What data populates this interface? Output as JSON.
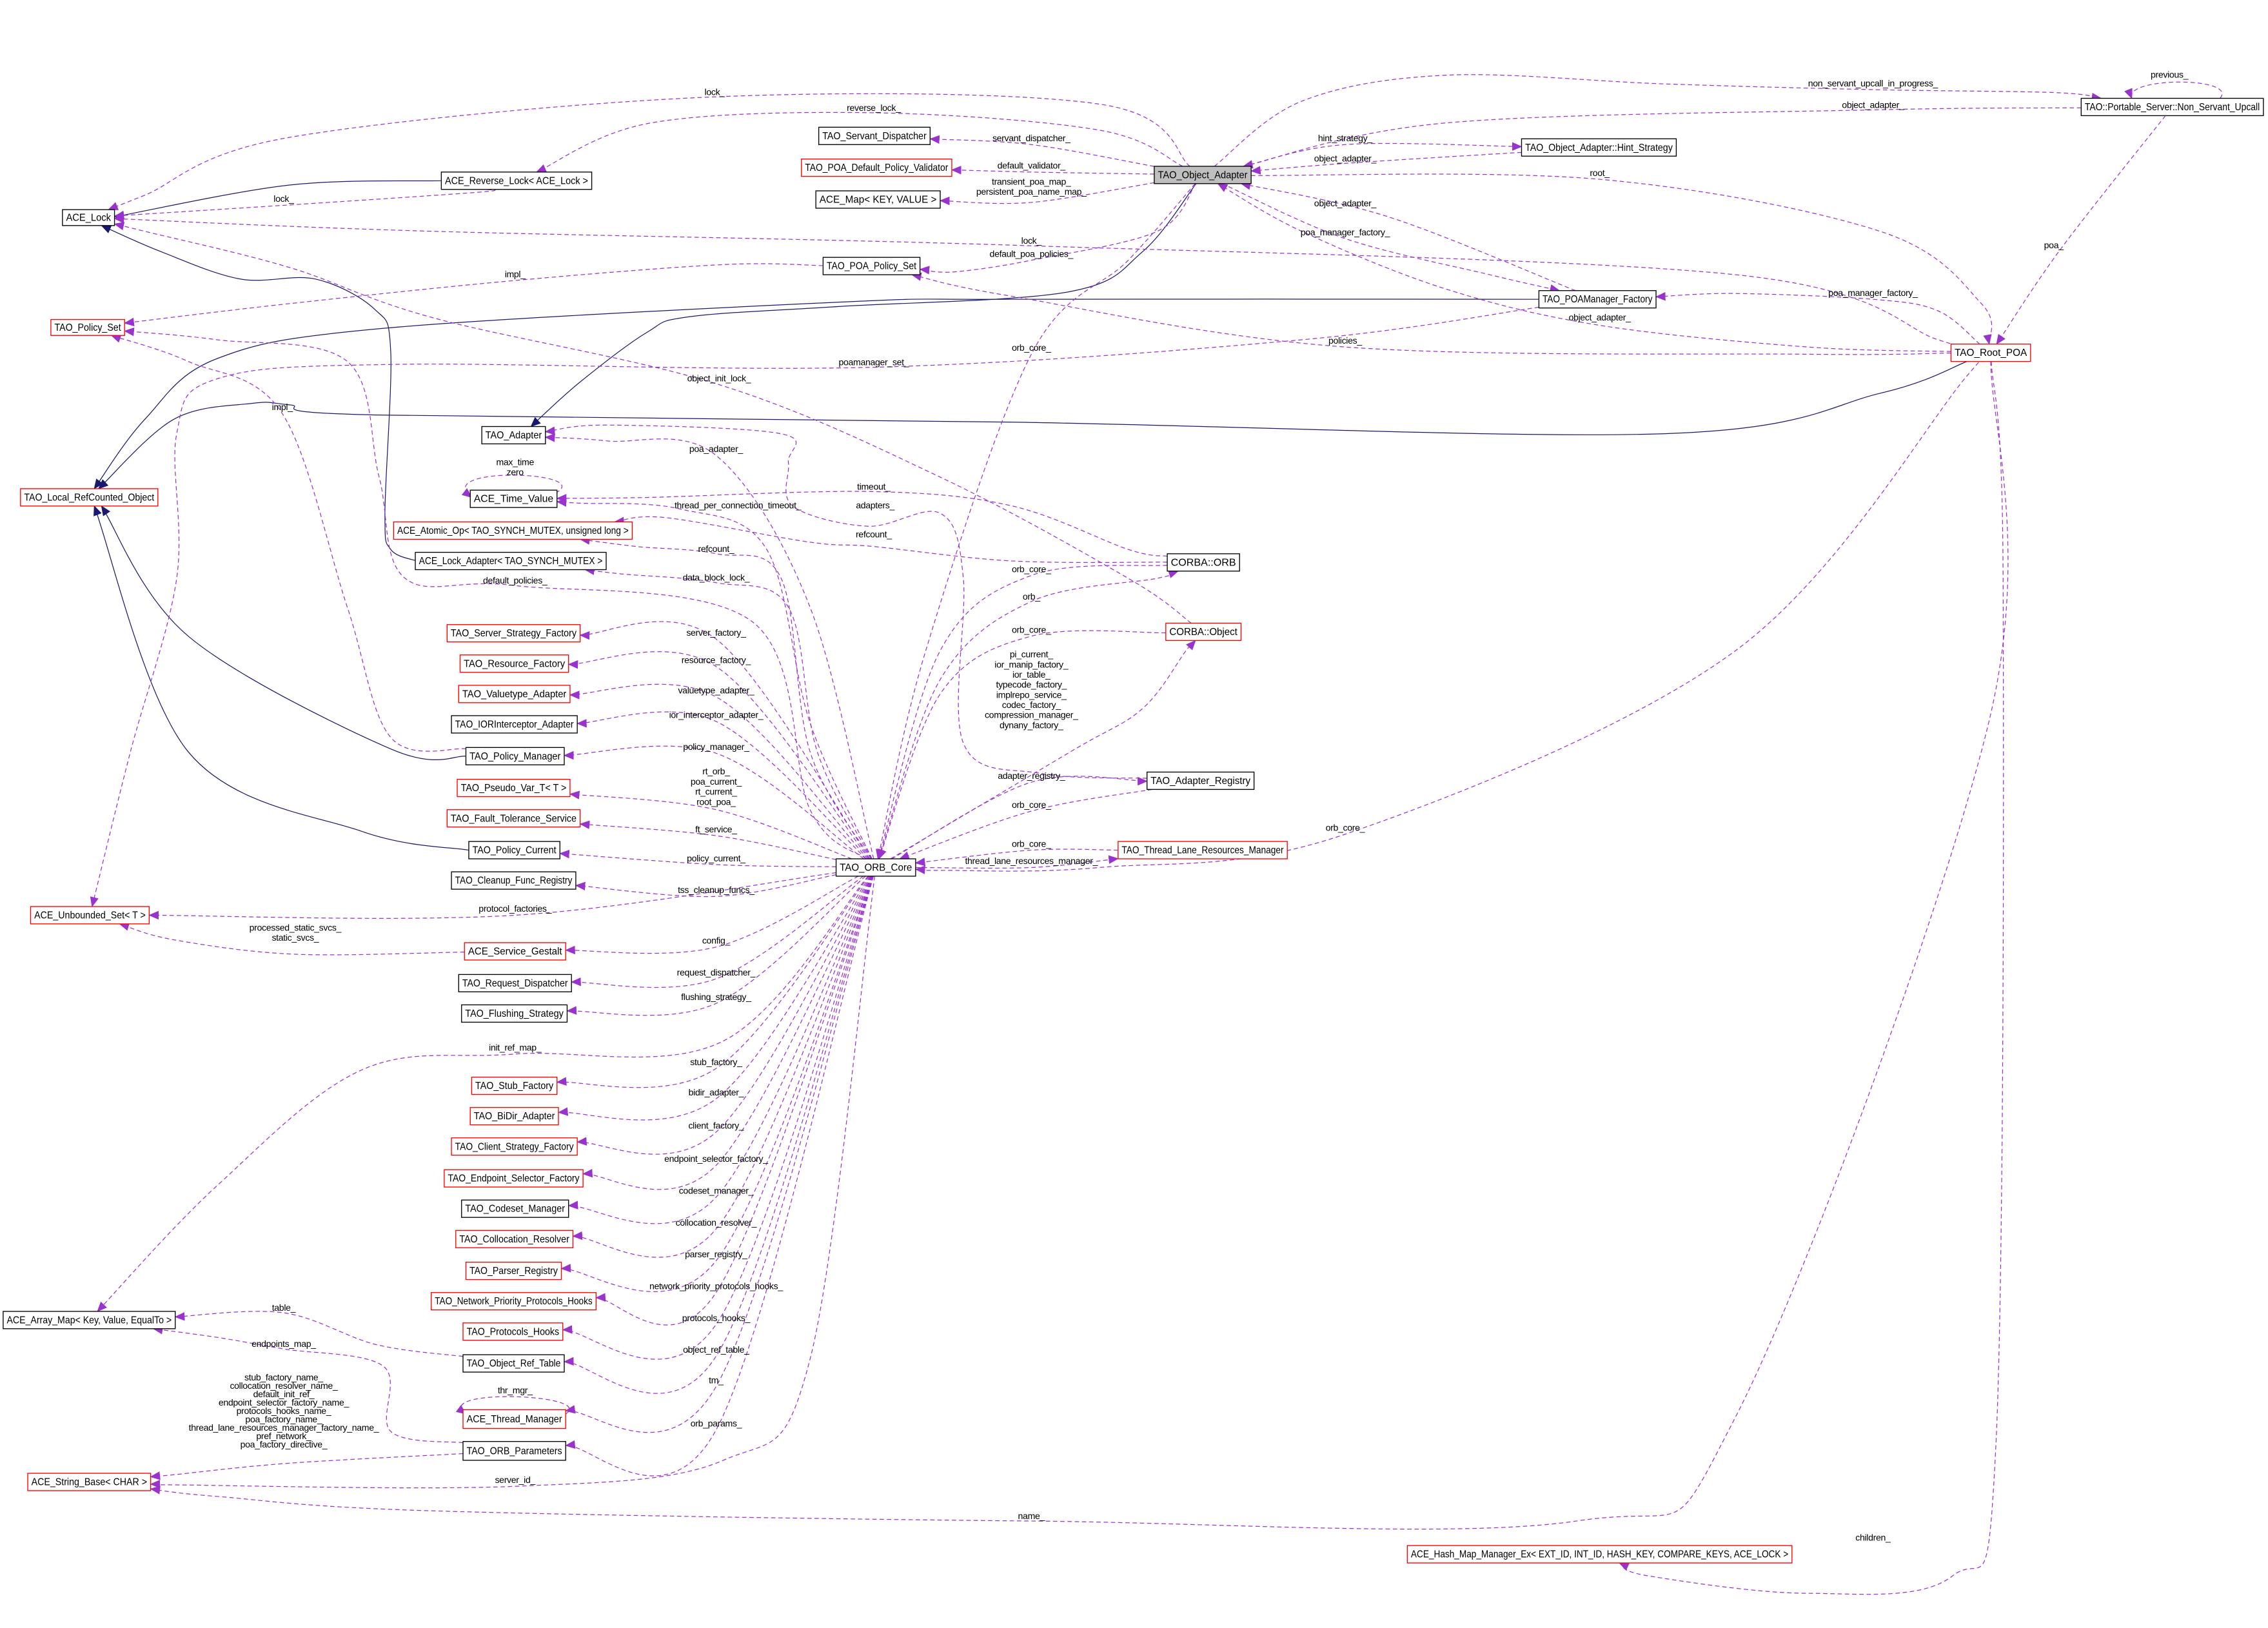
{
  "colors": {
    "dependency": "#9a32cd",
    "inheritance": "#191970",
    "incomplete_border": "#ff0000",
    "complete_border": "#000000",
    "focus_fill": "#bfbfbf"
  },
  "nodes": [
    {
      "id": "oa",
      "label": "TAO_Object_Adapter",
      "border": "#000000",
      "fill": "#bfbfbf"
    },
    {
      "id": "sd",
      "label": "TAO_Servant_Dispatcher",
      "border": "#000000"
    },
    {
      "id": "pdpv",
      "label": "TAO_POA_Default_Policy_Validator",
      "border": "#ff0000"
    },
    {
      "id": "map",
      "label": "ACE_Map< KEY, VALUE >",
      "border": "#000000"
    },
    {
      "id": "rl",
      "label": "ACE_Reverse_Lock< ACE_Lock >",
      "border": "#000000"
    },
    {
      "id": "lock",
      "label": "ACE_Lock",
      "border": "#000000"
    },
    {
      "id": "pps",
      "label": "TAO_POA_Policy_Set",
      "border": "#000000"
    },
    {
      "id": "ps",
      "label": "TAO_Policy_Set",
      "border": "#ff0000"
    },
    {
      "id": "pmf",
      "label": "TAO_POAManager_Factory",
      "border": "#000000"
    },
    {
      "id": "hs",
      "label": "TAO_Object_Adapter::Hint_Strategy",
      "border": "#000000"
    },
    {
      "id": "nsu",
      "label": "TAO::Portable_Server::Non_Servant_Upcall",
      "border": "#000000"
    },
    {
      "id": "rpoa",
      "label": "TAO_Root_POA",
      "border": "#ff0000"
    },
    {
      "id": "ad",
      "label": "TAO_Adapter",
      "border": "#000000"
    },
    {
      "id": "lrc",
      "label": "TAO_Local_RefCounted_Object",
      "border": "#ff0000"
    },
    {
      "id": "tv",
      "label": "ACE_Time_Value",
      "border": "#000000"
    },
    {
      "id": "ao",
      "label": "ACE_Atomic_Op< TAO_SYNCH_MUTEX, unsigned long >",
      "border": "#ff0000"
    },
    {
      "id": "la",
      "label": "ACE_Lock_Adapter< TAO_SYNCH_MUTEX >",
      "border": "#000000"
    },
    {
      "id": "orb",
      "label": "CORBA::ORB",
      "border": "#000000"
    },
    {
      "id": "obj",
      "label": "CORBA::Object",
      "border": "#ff0000"
    },
    {
      "id": "ssf",
      "label": "TAO_Server_Strategy_Factory",
      "border": "#ff0000"
    },
    {
      "id": "rf",
      "label": "TAO_Resource_Factory",
      "border": "#ff0000"
    },
    {
      "id": "vta",
      "label": "TAO_Valuetype_Adapter",
      "border": "#ff0000"
    },
    {
      "id": "iia",
      "label": "TAO_IORInterceptor_Adapter",
      "border": "#000000"
    },
    {
      "id": "pm",
      "label": "TAO_Policy_Manager",
      "border": "#000000"
    },
    {
      "id": "ar",
      "label": "TAO_Adapter_Registry",
      "border": "#000000"
    },
    {
      "id": "pv",
      "label": "TAO_Pseudo_Var_T< T >",
      "border": "#ff0000"
    },
    {
      "id": "fts",
      "label": "TAO_Fault_Tolerance_Service",
      "border": "#ff0000"
    },
    {
      "id": "pc",
      "label": "TAO_Policy_Current",
      "border": "#000000"
    },
    {
      "id": "core",
      "label": "TAO_ORB_Core",
      "border": "#000000"
    },
    {
      "id": "tlrm",
      "label": "TAO_Thread_Lane_Resources_Manager",
      "border": "#ff0000"
    },
    {
      "id": "cfr",
      "label": "TAO_Cleanup_Func_Registry",
      "border": "#000000"
    },
    {
      "id": "us",
      "label": "ACE_Unbounded_Set< T >",
      "border": "#ff0000"
    },
    {
      "id": "sg",
      "label": "ACE_Service_Gestalt",
      "border": "#ff0000"
    },
    {
      "id": "rd",
      "label": "TAO_Request_Dispatcher",
      "border": "#000000"
    },
    {
      "id": "fs",
      "label": "TAO_Flushing_Strategy",
      "border": "#000000"
    },
    {
      "id": "stf",
      "label": "TAO_Stub_Factory",
      "border": "#ff0000"
    },
    {
      "id": "bda",
      "label": "TAO_BiDir_Adapter",
      "border": "#ff0000"
    },
    {
      "id": "csf",
      "label": "TAO_Client_Strategy_Factory",
      "border": "#ff0000"
    },
    {
      "id": "esf",
      "label": "TAO_Endpoint_Selector_Factory",
      "border": "#ff0000"
    },
    {
      "id": "cm",
      "label": "TAO_Codeset_Manager",
      "border": "#000000"
    },
    {
      "id": "cr",
      "label": "TAO_Collocation_Resolver",
      "border": "#ff0000"
    },
    {
      "id": "pr",
      "label": "TAO_Parser_Registry",
      "border": "#ff0000"
    },
    {
      "id": "nph",
      "label": "TAO_Network_Priority_Protocols_Hooks",
      "border": "#ff0000"
    },
    {
      "id": "ph",
      "label": "TAO_Protocols_Hooks",
      "border": "#ff0000"
    },
    {
      "id": "ort",
      "label": "TAO_Object_Ref_Table",
      "border": "#000000"
    },
    {
      "id": "am",
      "label": "ACE_Array_Map< Key, Value, EqualTo >",
      "border": "#000000"
    },
    {
      "id": "tm",
      "label": "ACE_Thread_Manager",
      "border": "#ff0000"
    },
    {
      "id": "op",
      "label": "TAO_ORB_Parameters",
      "border": "#000000"
    },
    {
      "id": "sb",
      "label": "ACE_String_Base< CHAR >",
      "border": "#ff0000"
    },
    {
      "id": "hm",
      "label": "ACE_Hash_Map_Manager_Ex< EXT_ID, INT_ID, HASH_KEY, COMPARE_KEYS, ACE_LOCK >",
      "border": "#ff0000"
    }
  ],
  "inheritance": [
    {
      "from": "rl",
      "to": "lock"
    },
    {
      "from": "pmf",
      "to": "lrc"
    },
    {
      "from": "rpoa",
      "to": "lrc"
    },
    {
      "from": "oa",
      "to": "ad"
    },
    {
      "from": "la",
      "to": "lock"
    },
    {
      "from": "pm",
      "to": "lrc"
    },
    {
      "from": "pc",
      "to": "lrc"
    }
  ],
  "edges": [
    {
      "from": "oa",
      "to": "lock",
      "labels": [
        "lock_"
      ]
    },
    {
      "from": "oa",
      "to": "rl",
      "labels": [
        "reverse_lock_"
      ]
    },
    {
      "from": "rl",
      "to": "lock",
      "labels": [
        "lock_"
      ]
    },
    {
      "from": "oa",
      "to": "sd",
      "labels": [
        "servant_dispatcher_"
      ]
    },
    {
      "from": "oa",
      "to": "pdpv",
      "labels": [
        "default_validator_"
      ]
    },
    {
      "from": "oa",
      "to": "map",
      "labels": [
        "transient_poa_map_",
        "persistent_poa_name_map_"
      ]
    },
    {
      "from": "oa",
      "to": "hs",
      "labels": [
        "hint_strategy_"
      ]
    },
    {
      "from": "hs",
      "to": "oa",
      "labels": [
        "object_adapter_"
      ]
    },
    {
      "from": "oa",
      "to": "nsu",
      "labels": [
        "non_servant_upcall_in_progress_"
      ]
    },
    {
      "from": "nsu",
      "to": "oa",
      "labels": [
        "object_adapter_"
      ]
    },
    {
      "from": "nsu",
      "to": "nsu",
      "labels": [
        "previous_"
      ]
    },
    {
      "from": "oa",
      "to": "rpoa",
      "labels": [
        "root_"
      ]
    },
    {
      "from": "nsu",
      "to": "rpoa",
      "labels": [
        "poa_"
      ]
    },
    {
      "from": "pmf",
      "to": "oa",
      "labels": [
        "object_adapter_"
      ]
    },
    {
      "from": "oa",
      "to": "pmf",
      "labels": [
        "poa_manager_factory_"
      ]
    },
    {
      "from": "rpoa",
      "to": "pmf",
      "labels": [
        "poa_manager_factory_"
      ]
    },
    {
      "from": "rpoa",
      "to": "oa",
      "labels": [
        "object_adapter_"
      ]
    },
    {
      "from": "rpoa",
      "to": "lock",
      "labels": [
        "lock_"
      ]
    },
    {
      "from": "oa",
      "to": "pps",
      "labels": [
        "default_poa_policies_"
      ]
    },
    {
      "from": "rpoa",
      "to": "pps",
      "labels": [
        "policies_"
      ]
    },
    {
      "from": "pps",
      "to": "ps",
      "labels": [
        "impl_"
      ]
    },
    {
      "from": "pmf",
      "to": "us",
      "labels": [
        "poamanager_set_"
      ]
    },
    {
      "from": "oa",
      "to": "core",
      "labels": [
        "orb_core_"
      ]
    },
    {
      "from": "obj",
      "to": "lock",
      "labels": [
        "object_init_lock_"
      ]
    },
    {
      "from": "pm",
      "to": "ps",
      "labels": [
        "impl_"
      ]
    },
    {
      "from": "core",
      "to": "ps",
      "labels": [
        "default_policies_"
      ]
    },
    {
      "from": "core",
      "to": "ad",
      "labels": [
        "poa_adapter_"
      ]
    },
    {
      "from": "ar",
      "to": "ad",
      "labels": [
        "adapters_"
      ]
    },
    {
      "from": "tv",
      "to": "tv",
      "labels": [
        "max_time",
        "zero"
      ]
    },
    {
      "from": "orb",
      "to": "tv",
      "labels": [
        "timeout_"
      ]
    },
    {
      "from": "core",
      "to": "tv",
      "labels": [
        "thread_per_connection_timeout_"
      ]
    },
    {
      "from": "orb",
      "to": "ao",
      "labels": [
        "refcount_"
      ]
    },
    {
      "from": "core",
      "to": "ao",
      "labels": [
        "refcount_"
      ]
    },
    {
      "from": "core",
      "to": "la",
      "labels": [
        "data_block_lock_"
      ]
    },
    {
      "from": "orb",
      "to": "core",
      "labels": [
        "orb_core_"
      ]
    },
    {
      "from": "core",
      "to": "orb",
      "labels": [
        "orb_"
      ]
    },
    {
      "from": "obj",
      "to": "core",
      "labels": [
        "orb_core_"
      ]
    },
    {
      "from": "core",
      "to": "obj",
      "labels": [
        "pi_current_",
        "ior_manip_factory_",
        "ior_table_",
        "typecode_factory_",
        "implrepo_service_",
        "codec_factory_",
        "compression_manager_",
        "dynany_factory_"
      ]
    },
    {
      "from": "core",
      "to": "ssf",
      "labels": [
        "server_factory_"
      ]
    },
    {
      "from": "core",
      "to": "rf",
      "labels": [
        "resource_factory_"
      ]
    },
    {
      "from": "core",
      "to": "vta",
      "labels": [
        "valuetype_adapter_"
      ]
    },
    {
      "from": "core",
      "to": "iia",
      "labels": [
        "ior_interceptor_adapter_"
      ]
    },
    {
      "from": "core",
      "to": "pm",
      "labels": [
        "policy_manager_"
      ]
    },
    {
      "from": "core",
      "to": "pv",
      "labels": [
        "rt_orb_",
        "poa_current_",
        "rt_current_",
        "root_poa_"
      ]
    },
    {
      "from": "core",
      "to": "fts",
      "labels": [
        "ft_service_"
      ]
    },
    {
      "from": "core",
      "to": "pc",
      "labels": [
        "policy_current_"
      ]
    },
    {
      "from": "core",
      "to": "ar",
      "labels": [
        "adapter_registry_"
      ]
    },
    {
      "from": "ar",
      "to": "core",
      "labels": [
        "orb_core_"
      ]
    },
    {
      "from": "tlrm",
      "to": "core",
      "labels": [
        "orb_core_"
      ]
    },
    {
      "from": "core",
      "to": "tlrm",
      "labels": [
        "thread_lane_resources_manager_"
      ]
    },
    {
      "from": "rpoa",
      "to": "core",
      "labels": [
        "orb_core_"
      ]
    },
    {
      "from": "core",
      "to": "cfr",
      "labels": [
        "tss_cleanup_funcs_"
      ]
    },
    {
      "from": "core",
      "to": "us",
      "labels": [
        "protocol_factories_"
      ]
    },
    {
      "from": "sg",
      "to": "us",
      "labels": [
        "processed_static_svcs_",
        "static_svcs_"
      ]
    },
    {
      "from": "core",
      "to": "sg",
      "labels": [
        "config_"
      ]
    },
    {
      "from": "core",
      "to": "rd",
      "labels": [
        "request_dispatcher_"
      ]
    },
    {
      "from": "core",
      "to": "fs",
      "labels": [
        "flushing_strategy_"
      ]
    },
    {
      "from": "core",
      "to": "am",
      "labels": [
        "init_ref_map_"
      ]
    },
    {
      "from": "core",
      "to": "stf",
      "labels": [
        "stub_factory_"
      ]
    },
    {
      "from": "core",
      "to": "bda",
      "labels": [
        "bidir_adapter_"
      ]
    },
    {
      "from": "core",
      "to": "csf",
      "labels": [
        "client_factory_"
      ]
    },
    {
      "from": "core",
      "to": "esf",
      "labels": [
        "endpoint_selector_factory_"
      ]
    },
    {
      "from": "core",
      "to": "cm",
      "labels": [
        "codeset_manager_"
      ]
    },
    {
      "from": "core",
      "to": "cr",
      "labels": [
        "collocation_resolver_"
      ]
    },
    {
      "from": "core",
      "to": "pr",
      "labels": [
        "parser_registry_"
      ]
    },
    {
      "from": "core",
      "to": "nph",
      "labels": [
        "network_priority_protocols_hooks_"
      ]
    },
    {
      "from": "core",
      "to": "ph",
      "labels": [
        "protocols_hooks_"
      ]
    },
    {
      "from": "core",
      "to": "ort",
      "labels": [
        "object_ref_table_"
      ]
    },
    {
      "from": "ort",
      "to": "am",
      "labels": [
        "table_"
      ]
    },
    {
      "from": "op",
      "to": "am",
      "labels": [
        "endpoints_map_"
      ]
    },
    {
      "from": "core",
      "to": "tm",
      "labels": [
        "tm_"
      ]
    },
    {
      "from": "tm",
      "to": "tm",
      "labels": [
        "thr_mgr_"
      ]
    },
    {
      "from": "core",
      "to": "op",
      "labels": [
        "orb_params_"
      ]
    },
    {
      "from": "op",
      "to": "sb",
      "labels": [
        "stub_factory_name_",
        "collocation_resolver_name_",
        "default_init_ref_",
        "endpoint_selector_factory_name_",
        "protocols_hooks_name_",
        "poa_factory_name_",
        "thread_lane_resources_manager_factory_name_",
        "pref_network_",
        "poa_factory_directive_"
      ]
    },
    {
      "from": "core",
      "to": "sb",
      "labels": [
        "server_id_"
      ]
    },
    {
      "from": "rpoa",
      "to": "sb",
      "labels": [
        "name_"
      ]
    },
    {
      "from": "rpoa",
      "to": "hm",
      "labels": [
        "children_"
      ]
    }
  ]
}
